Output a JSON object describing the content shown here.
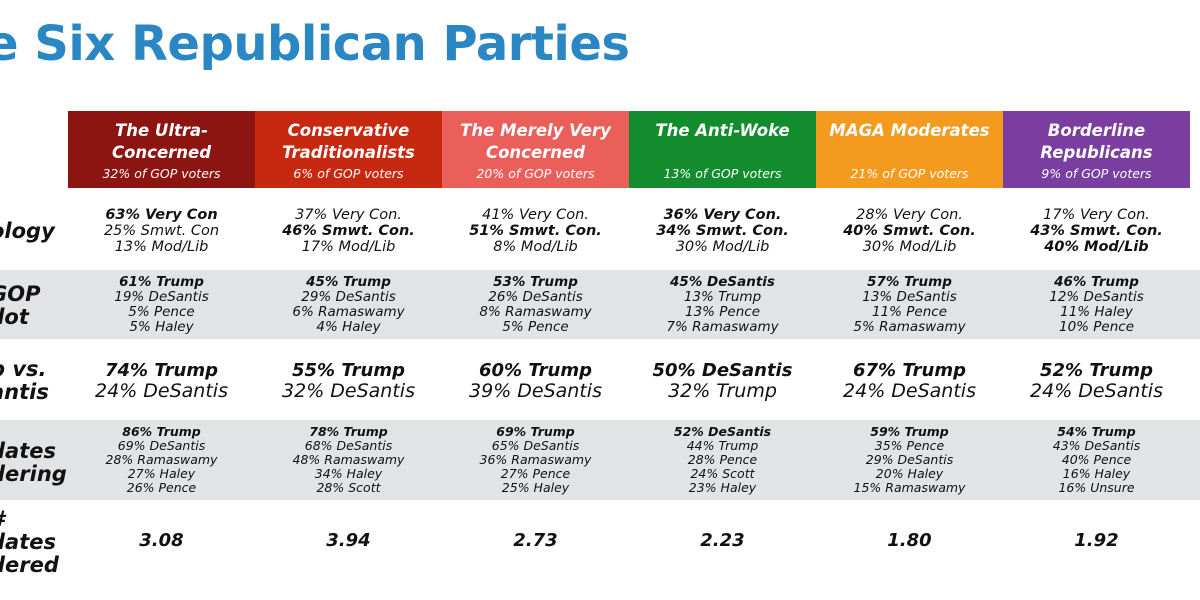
{
  "title": "e Six Republican Parties",
  "row_labels": {
    "ideology": "ology",
    "ballot": [
      "GOP",
      "llot"
    ],
    "h2h": [
      "p vs.",
      "antis"
    ],
    "considering": [
      "dates",
      "dering"
    ],
    "num": [
      "#",
      "dates",
      "dered"
    ]
  },
  "colors": {
    "title": "#2a87c4",
    "band": "#e2e3e5",
    "groups": [
      "#8c1512",
      "#c72810",
      "#eb5f5b",
      "#128c2c",
      "#f39a1f",
      "#7a3ea0"
    ]
  },
  "chart_data": {
    "type": "table",
    "title": "e Six Republican Parties",
    "groups": [
      {
        "name": [
          "The Ultra-",
          "Concerned"
        ],
        "share": "32% of GOP voters",
        "ideology": [
          "63% Very Con",
          "25% Smwt. Con",
          "13% Mod/Lib"
        ],
        "ideology_bold": [
          0
        ],
        "ballot": [
          "61% Trump",
          "19% DeSantis",
          "5% Pence",
          "5% Haley"
        ],
        "h2h": [
          "74% Trump",
          "24% DeSantis"
        ],
        "considering": [
          "86% Trump",
          "69% DeSantis",
          "28% Ramaswamy",
          "27% Haley",
          "26% Pence"
        ],
        "num_considered": "3.08"
      },
      {
        "name": [
          "Conservative",
          "Traditionalists"
        ],
        "share": "6% of GOP voters",
        "ideology": [
          "37% Very Con.",
          "46% Smwt. Con.",
          "17% Mod/Lib"
        ],
        "ideology_bold": [
          1
        ],
        "ballot": [
          "45% Trump",
          "29% DeSantis",
          "6% Ramaswamy",
          "4% Haley"
        ],
        "h2h": [
          "55% Trump",
          "32% DeSantis"
        ],
        "considering": [
          "78% Trump",
          "68% DeSantis",
          "48% Ramaswamy",
          "34% Haley",
          "28% Scott"
        ],
        "num_considered": "3.94"
      },
      {
        "name": [
          "The Merely Very",
          "Concerned"
        ],
        "share": "20% of GOP voters",
        "ideology": [
          "41% Very Con.",
          "51% Smwt. Con.",
          "8% Mod/Lib"
        ],
        "ideology_bold": [
          1
        ],
        "ballot": [
          "53% Trump",
          "26% DeSantis",
          "8% Ramaswamy",
          "5% Pence"
        ],
        "h2h": [
          "60% Trump",
          "39% DeSantis"
        ],
        "considering": [
          "69% Trump",
          "65% DeSantis",
          "36% Ramaswamy",
          "27% Pence",
          "25% Haley"
        ],
        "num_considered": "2.73"
      },
      {
        "name": [
          "The Anti-Woke"
        ],
        "share": "13% of GOP voters",
        "ideology": [
          "36% Very Con.",
          "34% Smwt. Con.",
          "30% Mod/Lib"
        ],
        "ideology_bold": [
          0,
          1
        ],
        "ballot": [
          "45% DeSantis",
          "13% Trump",
          "13% Pence",
          "7% Ramaswamy"
        ],
        "h2h": [
          "50% DeSantis",
          "32% Trump"
        ],
        "considering": [
          "52% DeSantis",
          "44% Trump",
          "28% Pence",
          "24% Scott",
          "23% Haley"
        ],
        "num_considered": "2.23"
      },
      {
        "name": [
          "MAGA Moderates"
        ],
        "share": "21% of GOP voters",
        "ideology": [
          "28% Very Con.",
          "40% Smwt. Con.",
          "30% Mod/Lib"
        ],
        "ideology_bold": [
          1
        ],
        "ballot": [
          "57% Trump",
          "13% DeSantis",
          "11% Pence",
          "5% Ramaswamy"
        ],
        "h2h": [
          "67% Trump",
          "24% DeSantis"
        ],
        "considering": [
          "59% Trump",
          "35% Pence",
          "29% DeSantis",
          "20% Haley",
          "15% Ramaswamy"
        ],
        "num_considered": "1.80"
      },
      {
        "name": [
          "Borderline",
          "Republicans"
        ],
        "share": "9% of GOP voters",
        "ideology": [
          "17% Very Con.",
          "43% Smwt. Con.",
          "40% Mod/Lib"
        ],
        "ideology_bold": [
          1,
          2
        ],
        "ballot": [
          "46% Trump",
          "12% DeSantis",
          "11% Haley",
          "10% Pence"
        ],
        "h2h": [
          "52% Trump",
          "24% DeSantis"
        ],
        "considering": [
          "54% Trump",
          "43% DeSantis",
          "40% Pence",
          "16% Haley",
          "16% Unsure"
        ],
        "num_considered": "1.92"
      }
    ]
  }
}
